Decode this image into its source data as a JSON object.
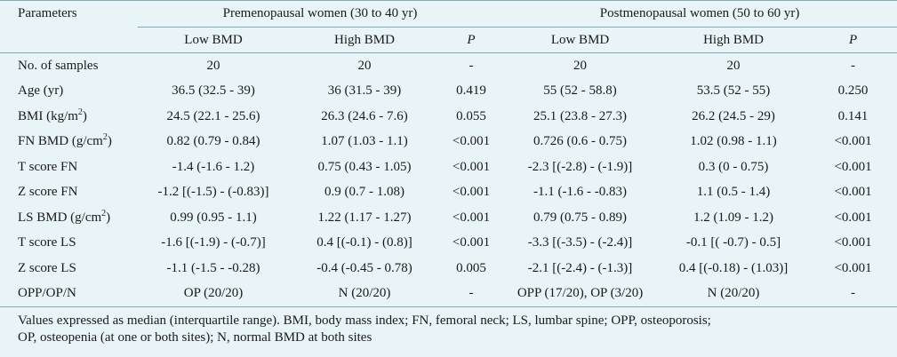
{
  "header": {
    "parameters": "Parameters",
    "group_pre": "Premenopausal women (30 to 40 yr)",
    "group_post": "Postmenopausal women (50 to 60 yr)",
    "low_bmd": "Low BMD",
    "high_bmd": "High BMD",
    "p": "P"
  },
  "rows": [
    {
      "param": "No. of samples",
      "sup": "",
      "unit_after": "",
      "pre_low": "20",
      "pre_high": "20",
      "pre_p": "-",
      "post_low": "20",
      "post_high": "20",
      "post_p": "-"
    },
    {
      "param": "Age (yr)",
      "sup": "",
      "unit_after": "",
      "pre_low": "36.5 (32.5 - 39)",
      "pre_high": "36 (31.5 - 39)",
      "pre_p": "0.419",
      "post_low": "55 (52 - 58.8)",
      "post_high": "53.5 (52 - 55)",
      "post_p": "0.250"
    },
    {
      "param": "BMI (kg/m",
      "sup": "2",
      "unit_after": ")",
      "pre_low": "24.5 (22.1 - 25.6)",
      "pre_high": "26.3 (24.6 - 7.6)",
      "pre_p": "0.055",
      "post_low": "25.1 (23.8 - 27.3)",
      "post_high": "26.2 (24.5 - 29)",
      "post_p": "0.141"
    },
    {
      "param": "FN BMD (g/cm",
      "sup": "2",
      "unit_after": ")",
      "pre_low": "0.82 (0.79 - 0.84)",
      "pre_high": "1.07 (1.03 - 1.1)",
      "pre_p": "<0.001",
      "post_low": "0.726 (0.6 - 0.75)",
      "post_high": "1.02 (0.98 - 1.1)",
      "post_p": "<0.001"
    },
    {
      "param": "T score FN",
      "sup": "",
      "unit_after": "",
      "pre_low": "-1.4 (-1.6 - 1.2)",
      "pre_high": "0.75 (0.43 - 1.05)",
      "pre_p": "<0.001",
      "post_low": "-2.3 [(-2.8) - (-1.9)]",
      "post_high": "0.3 (0 - 0.75)",
      "post_p": "<0.001"
    },
    {
      "param": "Z score FN",
      "sup": "",
      "unit_after": "",
      "pre_low": "-1.2 [(-1.5) - (-0.83)]",
      "pre_high": "0.9 (0.7 - 1.08)",
      "pre_p": "<0.001",
      "post_low": "-1.1 (-1.6 - -0.83)",
      "post_high": "1.1 (0.5 - 1.4)",
      "post_p": "<0.001"
    },
    {
      "param": "LS BMD (g/cm",
      "sup": "2",
      "unit_after": ")",
      "pre_low": "0.99 (0.95 - 1.1)",
      "pre_high": "1.22 (1.17 - 1.27)",
      "pre_p": "<0.001",
      "post_low": "0.79 (0.75 - 0.89)",
      "post_high": "1.2 (1.09 - 1.2)",
      "post_p": "<0.001"
    },
    {
      "param": "T score LS",
      "sup": "",
      "unit_after": "",
      "pre_low": "-1.6 [(-1.9) - (-0.7)]",
      "pre_high": "0.4 [(-0.1) - (0.8)]",
      "pre_p": "<0.001",
      "post_low": "-3.3 [(-3.5) - (-2.4)]",
      "post_high": "-0.1 [( -0.7) - 0.5]",
      "post_p": "<0.001"
    },
    {
      "param": "Z score LS",
      "sup": "",
      "unit_after": "",
      "pre_low": "-1.1 (-1.5 - -0.28)",
      "pre_high": "-0.4 (-0.45 - 0.78)",
      "pre_p": "0.005",
      "post_low": "-2.1 [(-2.4) - (-1.3)]",
      "post_high": "0.4 [(-0.18) - (1.03)]",
      "post_p": "<0.001"
    },
    {
      "param": "OPP/OP/N",
      "sup": "",
      "unit_after": "",
      "pre_low": "OP (20/20)",
      "pre_high": "N (20/20)",
      "pre_p": "-",
      "post_low": "OPP (17/20), OP (3/20)",
      "post_high": "N (20/20)",
      "post_p": "-"
    }
  ],
  "footnote": {
    "line1": "Values expressed as median (interquartile range). BMI, body mass index; FN, femoral neck; LS, lumbar spine; OPP,  osteoporosis;",
    "line2": "OP, osteopenia (at one or both sites); N, normal BMD at both sites"
  },
  "colors": {
    "background": "#e8f4f8",
    "rule": "#7fa8b8",
    "text": "#1a1a1a"
  }
}
